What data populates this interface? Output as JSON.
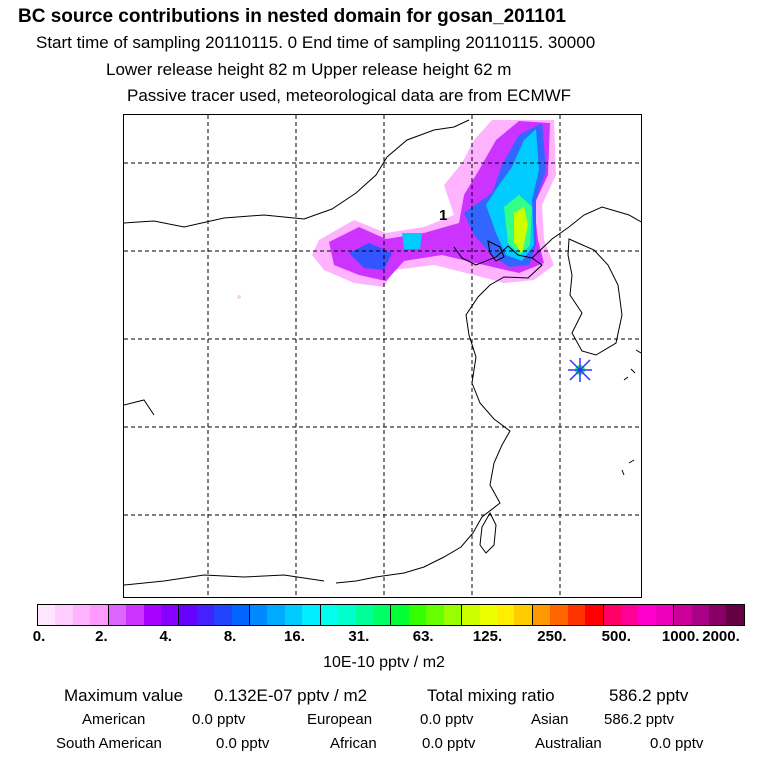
{
  "header": {
    "title": "BC  source contributions in nested domain for gosan_201101",
    "sampling": "Start time of sampling 20110115.     0     End time of sampling 20110115. 30000",
    "release": "Lower release height   82 m          Upper release height   62 m",
    "tracer": "Passive tracer used, meteorological data are from ECMWF"
  },
  "map": {
    "annotation_label": "1",
    "receptor_marker": "receptor-star",
    "colors": {
      "plume_pink": "#ff66ff",
      "plume_magenta": "#cc00ff",
      "plume_blue": "#3333ff",
      "plume_cyan": "#00ccff",
      "plume_green": "#33ff66",
      "plume_yellow": "#ccff00"
    }
  },
  "colorbar": {
    "colors": [
      "#ffe6ff",
      "#ffccff",
      "#ffb3ff",
      "#ff99ff",
      "#dd66ff",
      "#cc33ff",
      "#aa00ff",
      "#8800ff",
      "#6600ff",
      "#4422ff",
      "#2244ff",
      "#0066ff",
      "#0088ff",
      "#00aaff",
      "#00ccff",
      "#00eeff",
      "#00ffee",
      "#00ffcc",
      "#00ff99",
      "#00ff66",
      "#00ff33",
      "#33ff00",
      "#66ff00",
      "#99ff00",
      "#ccff00",
      "#eeff00",
      "#ffee00",
      "#ffcc00",
      "#ff9900",
      "#ff6600",
      "#ff3300",
      "#ff0000",
      "#ff0066",
      "#ff0099",
      "#ff00cc",
      "#ee00bb",
      "#cc0099",
      "#aa0088",
      "#880066",
      "#660044"
    ],
    "tick_labels": [
      "0.",
      "2.",
      "4.",
      "8.",
      "16.",
      "31.",
      "63.",
      "125.",
      "250.",
      "500.",
      "1000.",
      "2000."
    ],
    "unit_label": "10E-10 pptv / m2"
  },
  "summary": {
    "max_label": "Maximum value",
    "max_value": "0.132E-07 pptv / m2",
    "total_label": "Total mixing ratio",
    "total_value": "586.2 pptv",
    "regions": [
      {
        "label": "American",
        "value": "0.0 pptv"
      },
      {
        "label": "European",
        "value": "0.0 pptv"
      },
      {
        "label": "Asian",
        "value": "586.2 pptv"
      },
      {
        "label": "South American",
        "value": "0.0 pptv"
      },
      {
        "label": "African",
        "value": "0.0 pptv"
      },
      {
        "label": "Australian",
        "value": "0.0 pptv"
      }
    ]
  }
}
